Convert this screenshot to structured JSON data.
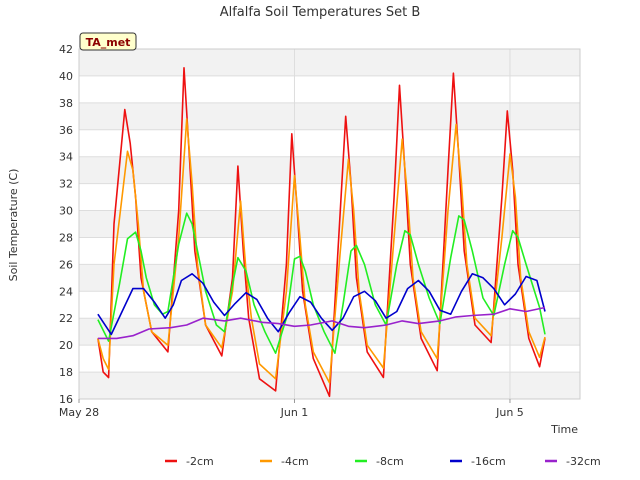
{
  "chart_data": {
    "type": "line",
    "title": "Alfalfa Soil Temperatures Set B",
    "xlabel": "Time",
    "ylabel": "Soil Temperature (C)",
    "badge": "TA_met",
    "ylim": [
      16,
      42
    ],
    "yticks": [
      16,
      18,
      20,
      22,
      24,
      26,
      28,
      30,
      32,
      34,
      36,
      38,
      40,
      42
    ],
    "xlim": [
      0,
      9.3
    ],
    "xticks": [
      {
        "value": 0,
        "label": "May 28"
      },
      {
        "value": 4,
        "label": "Jun 1"
      },
      {
        "value": 8,
        "label": "Jun 5"
      }
    ],
    "grid": true,
    "band_background": true,
    "legend_position": "bottom",
    "x_units": "days since May 28",
    "series": [
      {
        "name": "-2cm",
        "color": "#ee1111",
        "x": [
          0.35,
          0.45,
          0.55,
          0.65,
          0.85,
          0.95,
          1.05,
          1.15,
          1.35,
          1.65,
          1.85,
          1.95,
          2.05,
          2.15,
          2.35,
          2.65,
          2.85,
          2.95,
          3.05,
          3.15,
          3.35,
          3.65,
          3.85,
          3.95,
          4.05,
          4.15,
          4.35,
          4.65,
          4.85,
          4.95,
          5.05,
          5.15,
          5.35,
          5.65,
          5.85,
          5.95,
          6.05,
          6.15,
          6.35,
          6.65,
          6.85,
          6.95,
          7.05,
          7.15,
          7.35,
          7.65,
          7.85,
          7.95,
          8.05,
          8.15,
          8.35,
          8.55,
          8.65
        ],
        "y": [
          20.5,
          18,
          17.6,
          29,
          37.5,
          35,
          31,
          25,
          21,
          19.5,
          30,
          40.6,
          34,
          27,
          21.5,
          19.2,
          25,
          33.3,
          27,
          22,
          17.5,
          16.6,
          26,
          35.7,
          30,
          24,
          19,
          16.2,
          30,
          37,
          32,
          25,
          19.5,
          17.6,
          31,
          39.3,
          33,
          26,
          20.5,
          18.1,
          33,
          40.2,
          34,
          27,
          21.5,
          20.2,
          31,
          37.4,
          33,
          26,
          20.5,
          18.4,
          20.5
        ]
      },
      {
        "name": "-4cm",
        "color": "#ff9900",
        "x": [
          0.35,
          0.45,
          0.55,
          0.65,
          0.9,
          1.0,
          1.1,
          1.2,
          1.35,
          1.65,
          1.85,
          2.0,
          2.1,
          2.2,
          2.35,
          2.65,
          2.85,
          3.0,
          3.1,
          3.2,
          3.35,
          3.65,
          3.85,
          4.0,
          4.1,
          4.2,
          4.35,
          4.65,
          4.85,
          5.0,
          5.1,
          5.2,
          5.35,
          5.65,
          5.85,
          6.0,
          6.1,
          6.2,
          6.35,
          6.65,
          6.85,
          7.0,
          7.1,
          7.2,
          7.35,
          7.65,
          7.85,
          8.0,
          8.1,
          8.2,
          8.35,
          8.55,
          8.65
        ],
        "y": [
          20.5,
          19,
          18.2,
          26,
          34.4,
          33,
          29,
          24,
          21,
          20,
          28,
          36.8,
          32,
          26,
          21.5,
          19.8,
          24,
          30.7,
          25.5,
          22,
          18.6,
          17.5,
          24,
          32.6,
          28,
          23,
          19.5,
          17.2,
          27,
          33.8,
          30,
          24,
          20,
          18.3,
          28,
          35.3,
          31,
          25,
          21,
          19,
          30,
          36.4,
          32,
          26,
          22,
          20.7,
          28,
          34.2,
          31,
          25,
          21,
          19.1,
          20.6
        ]
      },
      {
        "name": "-8cm",
        "color": "#22ee22",
        "x": [
          0.35,
          0.55,
          0.75,
          0.9,
          1.05,
          1.15,
          1.25,
          1.4,
          1.55,
          1.65,
          1.85,
          2.0,
          2.1,
          2.2,
          2.35,
          2.55,
          2.7,
          2.85,
          2.95,
          3.1,
          3.25,
          3.45,
          3.65,
          3.85,
          4.0,
          4.1,
          4.2,
          4.35,
          4.55,
          4.75,
          4.9,
          5.05,
          5.15,
          5.3,
          5.5,
          5.7,
          5.9,
          6.05,
          6.15,
          6.3,
          6.5,
          6.7,
          6.9,
          7.05,
          7.15,
          7.3,
          7.5,
          7.7,
          7.9,
          8.05,
          8.15,
          8.3,
          8.55,
          8.65
        ],
        "y": [
          21.9,
          20.3,
          24.5,
          27.9,
          28.4,
          27,
          25,
          23,
          22.3,
          22.5,
          27.5,
          29.8,
          29,
          27,
          24,
          21.5,
          21,
          24.5,
          26.5,
          25.5,
          23,
          21,
          19.4,
          22,
          26.4,
          26.6,
          25.5,
          23,
          21,
          19.4,
          23,
          27,
          27.4,
          26,
          23,
          21.5,
          26,
          28.5,
          28.2,
          26,
          23.5,
          21.6,
          26.5,
          29.6,
          29.3,
          27,
          23.5,
          22.2,
          26,
          28.5,
          28,
          26,
          22.8,
          20.8
        ]
      },
      {
        "name": "-16cm",
        "color": "#0000cc",
        "x": [
          0.35,
          0.6,
          0.8,
          1.0,
          1.2,
          1.4,
          1.6,
          1.75,
          1.9,
          2.1,
          2.3,
          2.5,
          2.7,
          2.9,
          3.1,
          3.3,
          3.5,
          3.7,
          3.9,
          4.1,
          4.3,
          4.5,
          4.7,
          4.9,
          5.1,
          5.3,
          5.5,
          5.7,
          5.9,
          6.1,
          6.3,
          6.5,
          6.7,
          6.9,
          7.1,
          7.3,
          7.5,
          7.7,
          7.9,
          8.1,
          8.3,
          8.5,
          8.65
        ],
        "y": [
          22.3,
          20.8,
          22.5,
          24.2,
          24.2,
          23.2,
          22,
          23,
          24.8,
          25.3,
          24.6,
          23.2,
          22.2,
          23.1,
          23.9,
          23.4,
          22,
          21,
          22.4,
          23.6,
          23.2,
          22,
          21.1,
          22,
          23.6,
          24,
          23.3,
          22,
          22.5,
          24.2,
          24.8,
          24,
          22.6,
          22.3,
          24,
          25.3,
          25,
          24.2,
          23,
          23.8,
          25.1,
          24.8,
          22.5
        ]
      },
      {
        "name": "-32cm",
        "color": "#9922cc",
        "x": [
          0.35,
          0.7,
          1.0,
          1.3,
          1.7,
          2.0,
          2.3,
          2.7,
          3.0,
          3.4,
          3.7,
          4.0,
          4.3,
          4.7,
          5.0,
          5.3,
          5.7,
          6.0,
          6.3,
          6.7,
          7.0,
          7.3,
          7.7,
          8.0,
          8.3,
          8.65
        ],
        "y": [
          20.5,
          20.5,
          20.7,
          21.2,
          21.3,
          21.5,
          22,
          21.8,
          22,
          21.7,
          21.6,
          21.4,
          21.5,
          21.8,
          21.4,
          21.3,
          21.5,
          21.8,
          21.6,
          21.8,
          22.1,
          22.2,
          22.3,
          22.7,
          22.5,
          22.8
        ]
      }
    ]
  }
}
